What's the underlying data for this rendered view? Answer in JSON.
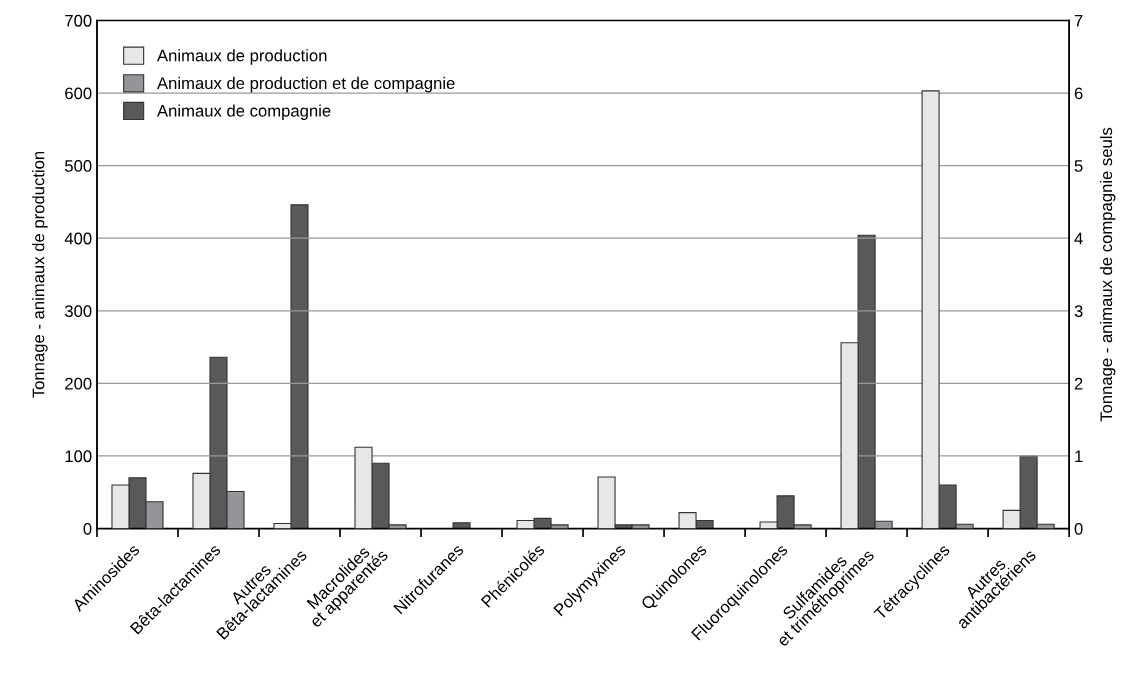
{
  "chart_data": {
    "type": "bar",
    "ylabel": "Tonnage - animaux de production",
    "y2label": "Tonnage - animaux de compagnie seuls",
    "categories": [
      "Aminosides",
      "Bêta-lactamines",
      "Autres\nBêta-lactamines",
      "Macrolides\net apparentés",
      "Nitrofuranes",
      "Phénicolés",
      "Polymyxines",
      "Quinolones",
      "Fluoroquinolones",
      "Sulfamides\net triméthoprimes",
      "Tétracyclines",
      "Autres\nantibactériens"
    ],
    "series": [
      {
        "name": "Animaux de production",
        "color": "#e6e7e8",
        "values": [
          60,
          76,
          7,
          112,
          null,
          11,
          71,
          22,
          9,
          256,
          603,
          25
        ]
      },
      {
        "name": "Animaux de compagnie",
        "color": "#58595b",
        "axis": "y2",
        "values": [
          0.7,
          2.36,
          4.46,
          0.9,
          0.08,
          0.14,
          0.05,
          0.11,
          0.45,
          4.04,
          0.6,
          1.0
        ]
      },
      {
        "name": "Animaux de production et de compagnie",
        "color": "#939598",
        "values": [
          37,
          51,
          null,
          5,
          null,
          5,
          5,
          null,
          5,
          10,
          6,
          6
        ]
      }
    ],
    "ylim": [
      0,
      700
    ],
    "yticks": [
      0,
      100,
      200,
      300,
      400,
      500,
      600,
      700
    ],
    "y2lim": [
      0,
      7
    ],
    "y2ticks": [
      0,
      1,
      2,
      3,
      4,
      5,
      6,
      7
    ],
    "grid": "y",
    "legend": "top left"
  }
}
